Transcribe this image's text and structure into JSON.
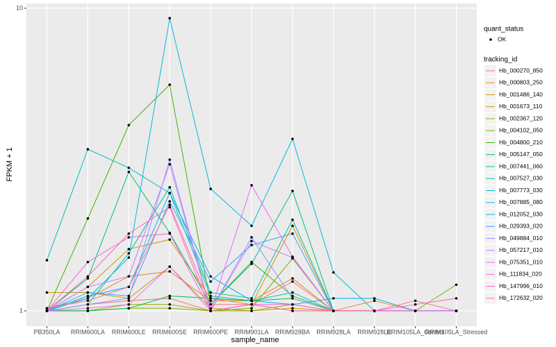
{
  "chart_data": {
    "type": "line",
    "x_label": "sample_name",
    "y_label": "FPKM + 1",
    "log_scale": true,
    "grid": true,
    "categories": [
      "PB350LA",
      "RRIM600LA",
      "RRIM600LE",
      "RRIM600SE",
      "RRIM600PE",
      "RRIM901LA",
      "RRIM928BA",
      "RRIM928LA",
      "RRIM928LE",
      "RRIM105LA_Control",
      "RRIM105LA_Stressed"
    ],
    "ylim": [
      0.89,
      10.37
    ],
    "yticks": [
      1,
      10
    ],
    "point_legend_title": "quant_status",
    "point_legend_entries": [
      "OK"
    ],
    "point_color": "#000000",
    "legend_title": "tracking_id",
    "series": [
      {
        "name": "Hb_000270_850",
        "color": "#F8766D",
        "values": [
          1.0,
          1.05,
          1.08,
          1.1,
          1.0,
          1.05,
          1.25,
          1.0,
          1.0,
          1.0,
          1.0
        ]
      },
      {
        "name": "Hb_000803_250",
        "color": "#EA8331",
        "values": [
          1.02,
          1.1,
          1.3,
          1.35,
          1.08,
          1.08,
          1.28,
          1.0,
          1.08,
          1.0,
          1.0
        ]
      },
      {
        "name": "Hb_001486_140",
        "color": "#D89000",
        "values": [
          1.0,
          1.2,
          1.6,
          1.72,
          1.1,
          1.05,
          1.91,
          1.0,
          1.0,
          1.0,
          1.0
        ]
      },
      {
        "name": "Hb_001673_110",
        "color": "#C09B00",
        "values": [
          1.15,
          1.15,
          1.1,
          1.4,
          1.02,
          1.0,
          1.02,
          1.0,
          1.0,
          1.0,
          1.0
        ]
      },
      {
        "name": "Hb_002367_120",
        "color": "#A3A500",
        "values": [
          1.0,
          1.0,
          1.05,
          1.05,
          1.0,
          1.0,
          1.05,
          1.0,
          1.0,
          1.0,
          1.0
        ]
      },
      {
        "name": "Hb_004102_050",
        "color": "#7CAE00",
        "values": [
          1.0,
          1.0,
          1.02,
          1.02,
          1.0,
          1.02,
          1.49,
          1.0,
          1.0,
          1.0,
          1.22
        ]
      },
      {
        "name": "Hb_004800_210",
        "color": "#39B600",
        "values": [
          1.0,
          2.02,
          4.11,
          5.59,
          1.05,
          1.45,
          1.12,
          1.0,
          1.0,
          1.0,
          1.0
        ]
      },
      {
        "name": "Hb_005147_050",
        "color": "#00BB4E",
        "values": [
          1.0,
          1.0,
          1.02,
          1.12,
          1.1,
          1.08,
          1.1,
          1.0,
          1.0,
          1.0,
          1.0
        ]
      },
      {
        "name": "Hb_007441_060",
        "color": "#00BF7D",
        "values": [
          1.0,
          1.28,
          2.88,
          1.81,
          1.05,
          1.43,
          2.49,
          1.0,
          1.0,
          1.0,
          1.0
        ]
      },
      {
        "name": "Hb_007527_030",
        "color": "#00C1A3",
        "values": [
          1.0,
          1.05,
          1.55,
          2.56,
          1.15,
          1.1,
          2.0,
          1.0,
          1.0,
          1.0,
          1.0
        ]
      },
      {
        "name": "Hb_007773_030",
        "color": "#00BFC4",
        "values": [
          1.47,
          3.42,
          2.97,
          2.45,
          1.12,
          1.08,
          1.15,
          1.0,
          1.0,
          1.0,
          1.0
        ]
      },
      {
        "name": "Hb_007885_080",
        "color": "#00BAE0",
        "values": [
          1.0,
          1.1,
          1.5,
          9.27,
          2.53,
          1.91,
          3.7,
          1.34,
          1.0,
          1.0,
          1.0
        ]
      },
      {
        "name": "Hb_012052_030",
        "color": "#00B0F6",
        "values": [
          1.0,
          1.12,
          1.2,
          2.45,
          1.3,
          1.08,
          1.05,
          1.1,
          1.1,
          1.0,
          1.0
        ]
      },
      {
        "name": "Hb_029393_020",
        "color": "#35A2FF",
        "values": [
          1.0,
          1.15,
          1.12,
          2.3,
          1.25,
          1.65,
          1.8,
          1.0,
          1.0,
          1.0,
          1.0
        ]
      },
      {
        "name": "Hb_049884_010",
        "color": "#9590FF",
        "values": [
          1.0,
          1.05,
          1.1,
          3.16,
          1.0,
          1.75,
          1.1,
          1.0,
          1.0,
          1.0,
          1.0
        ]
      },
      {
        "name": "Hb_057217_010",
        "color": "#C77CFF",
        "values": [
          1.0,
          1.2,
          1.3,
          3.05,
          1.0,
          1.7,
          1.5,
          1.0,
          1.0,
          1.0,
          1.0
        ]
      },
      {
        "name": "Hb_075351_010",
        "color": "#E76BF3",
        "values": [
          1.0,
          1.02,
          1.05,
          1.4,
          1.0,
          2.6,
          1.51,
          1.0,
          1.0,
          1.0,
          1.0
        ]
      },
      {
        "name": "Hb_111834_020",
        "color": "#FA62DB",
        "values": [
          1.0,
          1.45,
          1.75,
          1.8,
          1.0,
          1.05,
          1.05,
          1.0,
          1.0,
          1.0,
          1.0
        ]
      },
      {
        "name": "Hb_147996_010",
        "color": "#FF62BC",
        "values": [
          1.0,
          1.3,
          1.8,
          2.2,
          1.0,
          1.05,
          1.0,
          1.0,
          1.0,
          1.05,
          1.1
        ]
      },
      {
        "name": "Hb_172632_020",
        "color": "#FF6C91",
        "values": [
          1.02,
          1.08,
          1.2,
          2.24,
          1.05,
          1.05,
          1.0,
          1.0,
          1.0,
          1.08,
          1.0
        ]
      }
    ]
  }
}
